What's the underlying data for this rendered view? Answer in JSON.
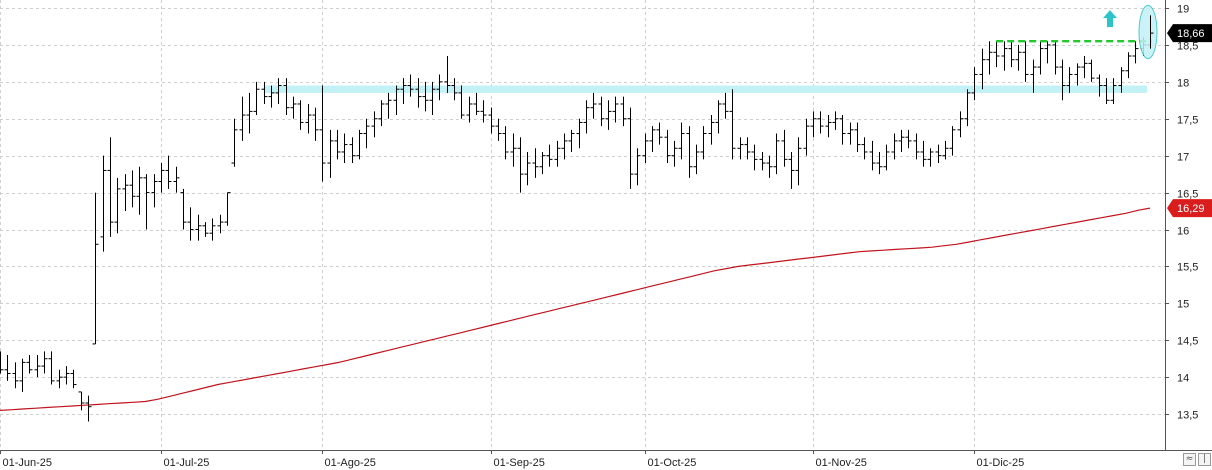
{
  "chart_data": {
    "type": "ohlc",
    "x_ticks": [
      "01-Jun-25",
      "01-Jul-25",
      "01-Ago-25",
      "01-Sep-25",
      "01-Oct-25",
      "01-Nov-25",
      "01-Dic-25"
    ],
    "y_ticks": [
      "19",
      "18,5",
      "18",
      "17,5",
      "17",
      "16,5",
      "16",
      "15,5",
      "15",
      "14,5",
      "14",
      "13,5"
    ],
    "ylim": [
      13.0,
      19.1
    ],
    "grid": true,
    "bars": [
      [
        14.25,
        14.35,
        14.05,
        14.1
      ],
      [
        14.1,
        14.3,
        13.95,
        14.05
      ],
      [
        14.05,
        14.2,
        13.85,
        13.95
      ],
      [
        13.95,
        14.25,
        13.8,
        14.2
      ],
      [
        14.2,
        14.3,
        14.05,
        14.1
      ],
      [
        14.1,
        14.3,
        14.0,
        14.15
      ],
      [
        14.15,
        14.35,
        14.05,
        14.25
      ],
      [
        14.25,
        14.35,
        13.9,
        13.95
      ],
      [
        13.95,
        14.1,
        13.85,
        14.0
      ],
      [
        14.0,
        14.15,
        13.9,
        14.05
      ],
      [
        14.05,
        14.1,
        13.85,
        13.9
      ],
      [
        13.8,
        13.8,
        13.55,
        13.65
      ],
      [
        13.65,
        13.75,
        13.4,
        13.6
      ],
      [
        14.45,
        16.5,
        14.45,
        15.8
      ],
      [
        15.9,
        17.0,
        15.7,
        16.8
      ],
      [
        16.8,
        17.25,
        15.9,
        16.1
      ],
      [
        16.1,
        16.7,
        15.95,
        16.55
      ],
      [
        16.55,
        16.75,
        16.25,
        16.6
      ],
      [
        16.6,
        16.8,
        16.3,
        16.45
      ],
      [
        16.45,
        16.85,
        16.2,
        16.7
      ],
      [
        16.7,
        16.75,
        16.0,
        16.5
      ],
      [
        16.5,
        16.75,
        16.3,
        16.65
      ],
      [
        16.65,
        16.9,
        16.5,
        16.8
      ],
      [
        16.8,
        17.0,
        16.55,
        16.65
      ],
      [
        16.65,
        16.85,
        16.5,
        16.7
      ],
      [
        16.5,
        16.55,
        16.0,
        16.1
      ],
      [
        16.1,
        16.3,
        15.85,
        16.0
      ],
      [
        16.0,
        16.2,
        15.85,
        16.05
      ],
      [
        16.05,
        16.1,
        15.9,
        15.95
      ],
      [
        15.95,
        16.15,
        15.85,
        16.05
      ],
      [
        16.05,
        16.2,
        15.95,
        16.1
      ],
      [
        16.1,
        16.5,
        16.05,
        16.5
      ],
      [
        16.9,
        17.5,
        16.85,
        17.35
      ],
      [
        17.35,
        17.8,
        17.2,
        17.55
      ],
      [
        17.55,
        17.85,
        17.3,
        17.6
      ],
      [
        17.6,
        18.0,
        17.55,
        17.9
      ],
      [
        17.9,
        18.0,
        17.7,
        17.8
      ],
      [
        17.8,
        17.95,
        17.65,
        17.85
      ],
      [
        17.85,
        18.05,
        17.7,
        17.95
      ],
      [
        17.95,
        18.05,
        17.55,
        17.65
      ],
      [
        17.65,
        17.8,
        17.5,
        17.7
      ],
      [
        17.7,
        17.75,
        17.35,
        17.45
      ],
      [
        17.45,
        17.7,
        17.3,
        17.55
      ],
      [
        17.55,
        17.65,
        17.2,
        17.35
      ],
      [
        17.35,
        17.95,
        16.65,
        16.9
      ],
      [
        16.9,
        17.35,
        16.7,
        17.2
      ],
      [
        17.2,
        17.35,
        16.95,
        17.05
      ],
      [
        17.05,
        17.3,
        16.9,
        17.15
      ],
      [
        17.15,
        17.25,
        16.9,
        17.0
      ],
      [
        17.0,
        17.35,
        16.95,
        17.3
      ],
      [
        17.3,
        17.5,
        17.1,
        17.4
      ],
      [
        17.4,
        17.6,
        17.25,
        17.5
      ],
      [
        17.5,
        17.75,
        17.4,
        17.7
      ],
      [
        17.7,
        17.85,
        17.5,
        17.75
      ],
      [
        17.75,
        17.95,
        17.55,
        17.9
      ],
      [
        17.9,
        18.05,
        17.7,
        17.95
      ],
      [
        17.95,
        18.1,
        17.8,
        17.9
      ],
      [
        17.9,
        18.05,
        17.65,
        17.8
      ],
      [
        17.8,
        18.0,
        17.6,
        17.75
      ],
      [
        17.75,
        18.0,
        17.55,
        17.9
      ],
      [
        17.9,
        18.1,
        17.75,
        18.0
      ],
      [
        18.0,
        18.35,
        17.85,
        17.95
      ],
      [
        17.95,
        18.05,
        17.75,
        17.85
      ],
      [
        17.85,
        17.95,
        17.5,
        17.55
      ],
      [
        17.55,
        17.8,
        17.45,
        17.7
      ],
      [
        17.7,
        17.85,
        17.55,
        17.6
      ],
      [
        17.6,
        17.75,
        17.45,
        17.55
      ],
      [
        17.55,
        17.65,
        17.3,
        17.4
      ],
      [
        17.4,
        17.5,
        17.2,
        17.3
      ],
      [
        17.3,
        17.4,
        16.95,
        17.05
      ],
      [
        17.05,
        17.3,
        16.85,
        17.1
      ],
      [
        17.1,
        17.25,
        16.5,
        16.75
      ],
      [
        16.75,
        17.05,
        16.6,
        16.9
      ],
      [
        16.9,
        17.1,
        16.7,
        16.85
      ],
      [
        16.85,
        17.05,
        16.75,
        17.0
      ],
      [
        17.0,
        17.15,
        16.85,
        16.95
      ],
      [
        16.95,
        17.2,
        16.85,
        17.1
      ],
      [
        17.1,
        17.3,
        16.95,
        17.2
      ],
      [
        17.2,
        17.35,
        17.05,
        17.3
      ],
      [
        17.3,
        17.5,
        17.1,
        17.45
      ],
      [
        17.45,
        17.75,
        17.3,
        17.65
      ],
      [
        17.65,
        17.85,
        17.5,
        17.7
      ],
      [
        17.7,
        17.8,
        17.4,
        17.5
      ],
      [
        17.5,
        17.75,
        17.35,
        17.6
      ],
      [
        17.6,
        17.8,
        17.45,
        17.7
      ],
      [
        17.7,
        17.8,
        17.4,
        17.5
      ],
      [
        17.5,
        17.65,
        16.55,
        16.75
      ],
      [
        16.75,
        17.1,
        16.6,
        17.0
      ],
      [
        17.0,
        17.3,
        16.9,
        17.2
      ],
      [
        17.2,
        17.4,
        17.05,
        17.35
      ],
      [
        17.35,
        17.45,
        17.15,
        17.25
      ],
      [
        17.25,
        17.35,
        16.9,
        17.0
      ],
      [
        17.0,
        17.2,
        16.85,
        17.1
      ],
      [
        17.1,
        17.45,
        16.95,
        17.3
      ],
      [
        17.3,
        17.4,
        16.7,
        16.85
      ],
      [
        16.85,
        17.15,
        16.75,
        17.05
      ],
      [
        17.05,
        17.4,
        16.95,
        17.3
      ],
      [
        17.3,
        17.55,
        17.15,
        17.45
      ],
      [
        17.45,
        17.75,
        17.3,
        17.7
      ],
      [
        17.7,
        17.85,
        17.5,
        17.6
      ],
      [
        17.6,
        17.9,
        16.95,
        17.1
      ],
      [
        17.1,
        17.25,
        16.95,
        17.15
      ],
      [
        17.15,
        17.25,
        16.95,
        17.05
      ],
      [
        17.05,
        17.15,
        16.8,
        16.95
      ],
      [
        16.95,
        17.05,
        16.8,
        16.9
      ],
      [
        16.9,
        17.0,
        16.7,
        16.85
      ],
      [
        16.85,
        17.3,
        16.75,
        17.2
      ],
      [
        17.2,
        17.35,
        16.85,
        16.95
      ],
      [
        16.95,
        17.05,
        16.55,
        16.8
      ],
      [
        16.8,
        17.25,
        16.6,
        17.1
      ],
      [
        17.1,
        17.5,
        17.0,
        17.4
      ],
      [
        17.4,
        17.6,
        17.25,
        17.5
      ],
      [
        17.5,
        17.6,
        17.3,
        17.4
      ],
      [
        17.4,
        17.55,
        17.25,
        17.45
      ],
      [
        17.45,
        17.6,
        17.35,
        17.5
      ],
      [
        17.5,
        17.55,
        17.15,
        17.3
      ],
      [
        17.3,
        17.45,
        17.15,
        17.35
      ],
      [
        17.35,
        17.45,
        17.05,
        17.15
      ],
      [
        17.15,
        17.25,
        16.95,
        17.05
      ],
      [
        17.05,
        17.2,
        16.8,
        16.9
      ],
      [
        16.9,
        17.05,
        16.75,
        16.85
      ],
      [
        16.85,
        17.15,
        16.8,
        17.05
      ],
      [
        17.05,
        17.3,
        16.95,
        17.2
      ],
      [
        17.2,
        17.35,
        17.05,
        17.25
      ],
      [
        17.25,
        17.35,
        17.1,
        17.2
      ],
      [
        17.2,
        17.3,
        16.95,
        17.05
      ],
      [
        17.05,
        17.2,
        16.85,
        16.95
      ],
      [
        16.95,
        17.1,
        16.85,
        17.05
      ],
      [
        17.05,
        17.15,
        16.9,
        17.0
      ],
      [
        17.0,
        17.2,
        16.95,
        17.1
      ],
      [
        17.1,
        17.4,
        17.0,
        17.35
      ],
      [
        17.35,
        17.6,
        17.25,
        17.5
      ],
      [
        17.5,
        17.9,
        17.4,
        17.85
      ],
      [
        17.85,
        18.2,
        17.75,
        18.1
      ],
      [
        18.1,
        18.45,
        17.9,
        18.3
      ],
      [
        18.3,
        18.55,
        18.1,
        18.4
      ],
      [
        18.4,
        18.55,
        18.2,
        18.35
      ],
      [
        18.35,
        18.55,
        18.15,
        18.45
      ],
      [
        18.45,
        18.55,
        18.2,
        18.3
      ],
      [
        18.3,
        18.5,
        18.15,
        18.4
      ],
      [
        18.4,
        18.55,
        18.0,
        18.1
      ],
      [
        18.1,
        18.3,
        17.85,
        18.2
      ],
      [
        18.2,
        18.55,
        18.1,
        18.45
      ],
      [
        18.45,
        18.55,
        18.25,
        18.5
      ],
      [
        18.5,
        18.55,
        18.1,
        18.2
      ],
      [
        18.2,
        18.3,
        17.75,
        17.95
      ],
      [
        17.95,
        18.2,
        17.85,
        18.1
      ],
      [
        18.1,
        18.25,
        17.95,
        18.2
      ],
      [
        18.2,
        18.35,
        18.05,
        18.25
      ],
      [
        18.25,
        18.3,
        18.0,
        18.05
      ],
      [
        18.05,
        18.1,
        17.8,
        17.95
      ],
      [
        17.95,
        18.05,
        17.7,
        17.75
      ],
      [
        17.75,
        18.05,
        17.7,
        17.95
      ],
      [
        17.95,
        18.2,
        17.85,
        18.15
      ],
      [
        18.15,
        18.4,
        18.05,
        18.35
      ],
      [
        18.35,
        18.55,
        18.25,
        18.45
      ],
      [
        18.45,
        18.6,
        18.35,
        18.5
      ],
      [
        18.5,
        18.9,
        18.45,
        18.66
      ]
    ],
    "moving_average": [
      13.55,
      13.56,
      13.57,
      13.58,
      13.59,
      13.6,
      13.61,
      13.62,
      13.63,
      13.64,
      13.65,
      13.66,
      13.67,
      13.7,
      13.74,
      13.78,
      13.82,
      13.86,
      13.9,
      13.93,
      13.96,
      13.99,
      14.02,
      14.05,
      14.08,
      14.11,
      14.14,
      14.17,
      14.2,
      14.24,
      14.28,
      14.32,
      14.36,
      14.4,
      14.44,
      14.48,
      14.52,
      14.56,
      14.6,
      14.64,
      14.68,
      14.72,
      14.76,
      14.8,
      14.84,
      14.88,
      14.92,
      14.96,
      15.0,
      15.04,
      15.08,
      15.12,
      15.16,
      15.2,
      15.24,
      15.28,
      15.32,
      15.36,
      15.4,
      15.44,
      15.47,
      15.5,
      15.52,
      15.54,
      15.56,
      15.58,
      15.6,
      15.62,
      15.64,
      15.66,
      15.68,
      15.7,
      15.71,
      15.72,
      15.73,
      15.74,
      15.75,
      15.76,
      15.78,
      15.8,
      15.83,
      15.86,
      15.89,
      15.92,
      15.95,
      15.98,
      16.01,
      16.04,
      16.07,
      16.1,
      16.13,
      16.16,
      16.19,
      16.22,
      16.26,
      16.29
    ],
    "last_price_label": "18,66",
    "last_ma_label": "16,29",
    "support_zone": {
      "from_price": 17.85,
      "to_price": 17.95
    },
    "resistance_line": {
      "price": 18.55
    },
    "colors": {
      "bars": "#000000",
      "moving_average": "#c0141e",
      "support_zone": "#c2f1f6",
      "resistance_line": "#22c92c",
      "breakout_arrow": "#2ec3c8",
      "price_tag": "#000000",
      "ma_tag": "#d91d1d",
      "grid": "#cfcfcf"
    },
    "icons": [
      "breakout-arrow-icon",
      "breakout-highlight-ellipse"
    ]
  }
}
